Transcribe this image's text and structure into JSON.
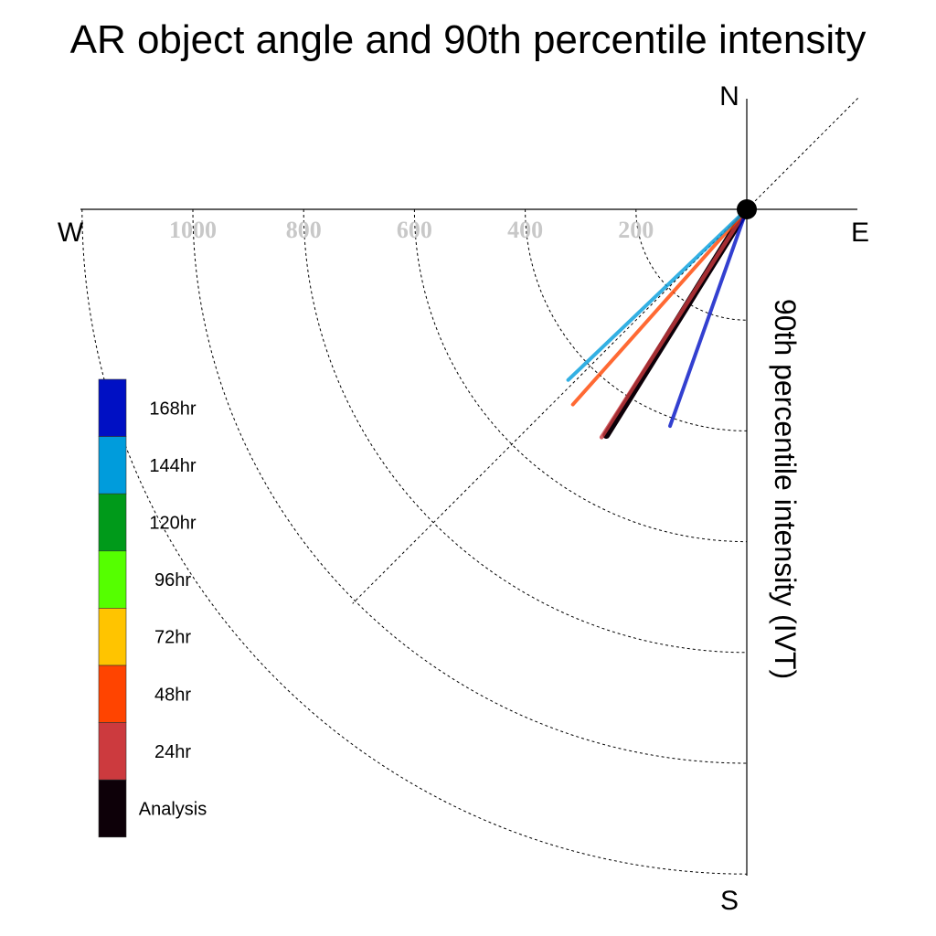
{
  "chart_data": {
    "type": "polar-vector",
    "title": "AR object angle and 90th percentile intensity",
    "axis_label": "90th percentile intensity (IVT)",
    "compass": {
      "north": "N",
      "south": "S",
      "east": "E",
      "west": "W"
    },
    "radial_ticks": [
      "200",
      "400",
      "600",
      "800",
      "1000"
    ],
    "radial_tick_values": [
      200,
      400,
      600,
      800,
      1000
    ],
    "radial_max": 1200,
    "reference_angle_deg": 45,
    "series": [
      {
        "name": "Analysis",
        "color": "#0d0008",
        "angle_deg": 211.9,
        "intensity": 480
      },
      {
        "name": "24hr",
        "color": "#cc3a3e",
        "angle_deg": 212.5,
        "intensity": 488
      },
      {
        "name": "48hr",
        "color": "#ff4400",
        "angle_deg": 221.7,
        "intensity": 472
      },
      {
        "name": "72hr",
        "color": "#ffc400",
        "angle_deg": null,
        "intensity": null
      },
      {
        "name": "96hr",
        "color": "#55ff00",
        "angle_deg": null,
        "intensity": null
      },
      {
        "name": "120hr",
        "color": "#009a1a",
        "angle_deg": null,
        "intensity": null
      },
      {
        "name": "144hr",
        "color": "#009cdc",
        "angle_deg": 226.3,
        "intensity": 446
      },
      {
        "name": "168hr",
        "color": "#0010c4",
        "angle_deg": 199.5,
        "intensity": 415
      }
    ],
    "legend": {
      "order_top_to_bottom": [
        "168hr",
        "144hr",
        "120hr",
        "96hr",
        "72hr",
        "48hr",
        "24hr",
        "Analysis"
      ],
      "placement": "left"
    },
    "grid": true
  }
}
